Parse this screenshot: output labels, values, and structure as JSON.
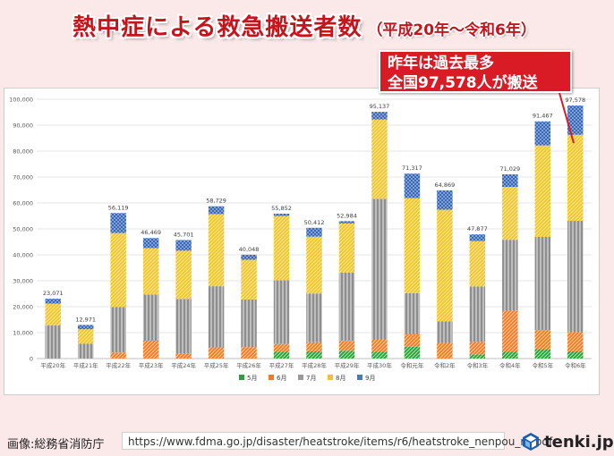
{
  "title": {
    "main": "熱中症による救急搬送者数",
    "sub": "（平成20年～令和6年）"
  },
  "callout": {
    "line1": "昨年は過去最多",
    "line2": "全国97,578人が搬送"
  },
  "footer": {
    "source": "画像:総務省消防庁",
    "url": "https://www.fdma.go.jp/disaster/heatstroke/items/r6/heatstroke_nenpou_r6.pdf",
    "brand": "tenki.jp"
  },
  "colors": {
    "may": "#2e9e3d",
    "june": "#f07a2a",
    "july": "#9a9a9a",
    "august": "#f2c230",
    "september": "#4a78c2",
    "callout": "#d81b24"
  },
  "chart_data": {
    "type": "bar",
    "stacked": true,
    "categories": [
      "平成20年",
      "平成21年",
      "平成22年",
      "平成23年",
      "平成24年",
      "平成25年",
      "平成26年",
      "平成27年",
      "平成28年",
      "平成29年",
      "平成30年",
      "令和元年",
      "令和2年",
      "令和3年",
      "令和4年",
      "令和5年",
      "令和6年"
    ],
    "totals": [
      23071,
      12971,
      56119,
      46469,
      45701,
      58729,
      40048,
      55852,
      50412,
      52984,
      95137,
      71317,
      64869,
      47877,
      71029,
      91467,
      97578
    ],
    "total_labels": [
      "23,071",
      "12,971",
      "56,119",
      "46,469",
      "45,701",
      "58,729",
      "40,048",
      "55,852",
      "50,412",
      "52,984",
      "95,137",
      "71,317",
      "64,869",
      "47,877",
      "71,029",
      "91,467",
      "97,578"
    ],
    "series": [
      {
        "name": "5月",
        "key": "may",
        "values": [
          0,
          0,
          0,
          0,
          0,
          0,
          0,
          2600,
          2800,
          3000,
          2700,
          4500,
          0,
          1600,
          2600,
          3600,
          2800
        ]
      },
      {
        "name": "6月",
        "key": "june",
        "values": [
          0,
          0,
          2300,
          6900,
          2000,
          4300,
          4400,
          3000,
          3500,
          3800,
          4700,
          4800,
          6000,
          4800,
          16000,
          7300,
          7300
        ]
      },
      {
        "name": "7月",
        "key": "july",
        "values": [
          12800,
          5700,
          17600,
          17800,
          21000,
          23600,
          18400,
          24600,
          18800,
          26400,
          54200,
          15900,
          8400,
          21400,
          27200,
          36000,
          43000
        ]
      },
      {
        "name": "8月",
        "key": "august",
        "values": [
          8400,
          5600,
          28500,
          17900,
          18600,
          27800,
          15300,
          24800,
          21900,
          18900,
          30600,
          36700,
          43000,
          17500,
          20400,
          35300,
          33200
        ]
      },
      {
        "name": "9月",
        "key": "september",
        "values": [
          1871,
          1671,
          7719,
          3869,
          4101,
          3029,
          1948,
          852,
          3412,
          884,
          2937,
          9417,
          7469,
          2577,
          4829,
          9267,
          11278
        ]
      }
    ],
    "yticks": [
      "0",
      "10,000",
      "20,000",
      "30,000",
      "40,000",
      "50,000",
      "60,000",
      "70,000",
      "80,000",
      "90,000",
      "100,000"
    ],
    "ylim": [
      0,
      100000
    ],
    "xlabel": "",
    "ylabel": "",
    "legend": {
      "position": "bottom",
      "labels": [
        "5月",
        "6月",
        "7月",
        "8月",
        "9月"
      ]
    }
  }
}
